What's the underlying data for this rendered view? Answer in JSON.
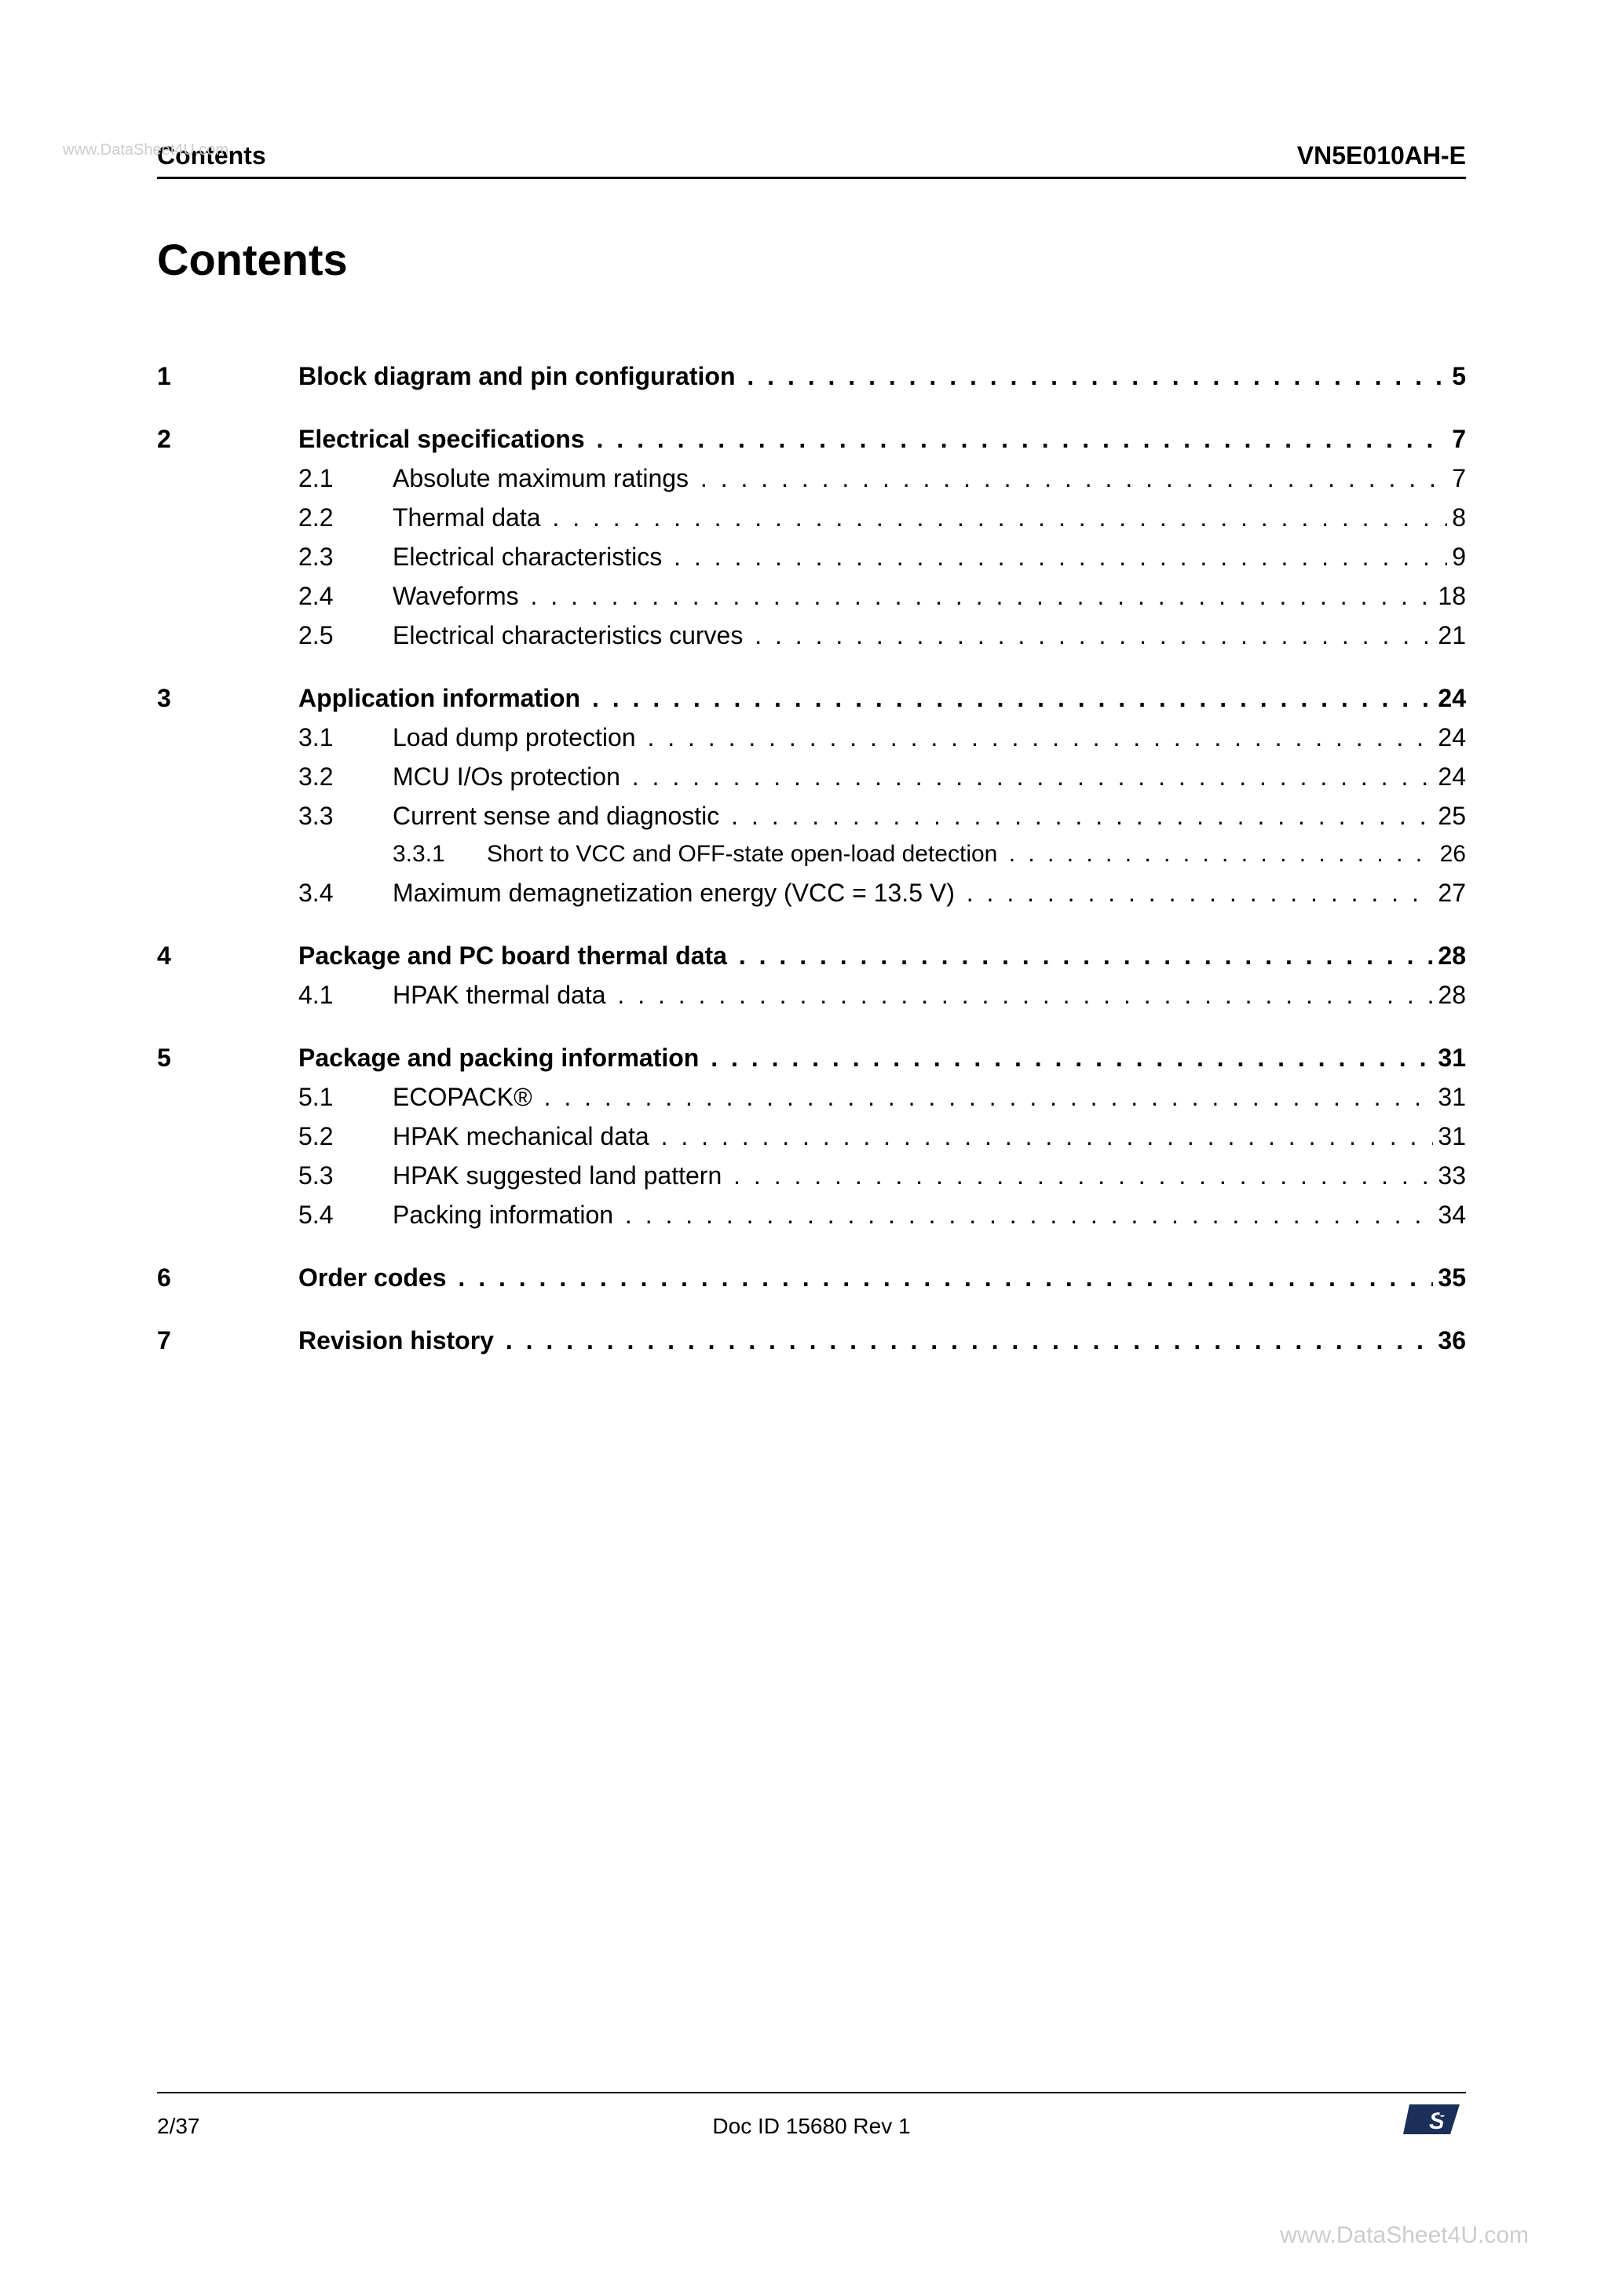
{
  "watermark": "www.DataSheet4U.com",
  "header": {
    "left": "Contents",
    "right": "VN5E010AH-E"
  },
  "title": "Contents",
  "dots": ". . . . . . . . . . . . . . . . . . . . . . . . . . . . . . . . . . . . . . . . . . . . . . . . . . . . . . . . . . . . . . . . . . . . . . . . . . . . . . . . . . . . . . . . . . . . . . . . . . . .",
  "toc": [
    {
      "type": "section",
      "num": "1",
      "label": "Block diagram and pin configuration",
      "page": "5"
    },
    {
      "type": "section",
      "num": "2",
      "label": "Electrical specifications",
      "page": "7"
    },
    {
      "type": "sub",
      "num": "2.1",
      "label": "Absolute maximum ratings",
      "page": "7"
    },
    {
      "type": "sub",
      "num": "2.2",
      "label": "Thermal data",
      "page": "8"
    },
    {
      "type": "sub",
      "num": "2.3",
      "label": "Electrical characteristics",
      "page": "9"
    },
    {
      "type": "sub",
      "num": "2.4",
      "label": "Waveforms",
      "page": "18"
    },
    {
      "type": "sub",
      "num": "2.5",
      "label": "Electrical characteristics curves",
      "page": "21"
    },
    {
      "type": "section",
      "num": "3",
      "label": "Application information",
      "page": "24"
    },
    {
      "type": "sub",
      "num": "3.1",
      "label": "Load dump protection",
      "page": "24"
    },
    {
      "type": "sub",
      "num": "3.2",
      "label": "MCU I/Os protection",
      "page": "24"
    },
    {
      "type": "sub",
      "num": "3.3",
      "label": "Current sense and diagnostic",
      "page": "25"
    },
    {
      "type": "subsub",
      "num": "3.3.1",
      "label": "Short to VCC and OFF-state open-load detection",
      "page": "26"
    },
    {
      "type": "sub",
      "num": "3.4",
      "label": "Maximum demagnetization energy (VCC = 13.5 V)",
      "page": "27"
    },
    {
      "type": "section",
      "num": "4",
      "label": "Package and PC board thermal data",
      "page": "28"
    },
    {
      "type": "sub",
      "num": "4.1",
      "label": "HPAK thermal data",
      "page": "28"
    },
    {
      "type": "section",
      "num": "5",
      "label": "Package and packing information",
      "page": "31"
    },
    {
      "type": "sub",
      "num": "5.1",
      "label": "ECOPACK®",
      "page": "31"
    },
    {
      "type": "sub",
      "num": "5.2",
      "label": "HPAK mechanical data",
      "page": "31"
    },
    {
      "type": "sub",
      "num": "5.3",
      "label": "HPAK suggested land pattern",
      "page": "33"
    },
    {
      "type": "sub",
      "num": "5.4",
      "label": "Packing information",
      "page": "34"
    },
    {
      "type": "section",
      "num": "6",
      "label": "Order codes",
      "page": "35"
    },
    {
      "type": "section",
      "num": "7",
      "label": "Revision history",
      "page": "36"
    }
  ],
  "footer": {
    "left": "2/37",
    "center": "Doc ID 15680 Rev 1"
  },
  "colors": {
    "text": "#000000",
    "watermark": "#cccccc",
    "rule": "#000000",
    "logo_dark": "#1a2f5a",
    "logo_white": "#ffffff"
  },
  "fonts": {
    "title_size_pt": 28,
    "section_size_pt": 16,
    "body_size_pt": 16,
    "footer_size_pt": 14
  }
}
